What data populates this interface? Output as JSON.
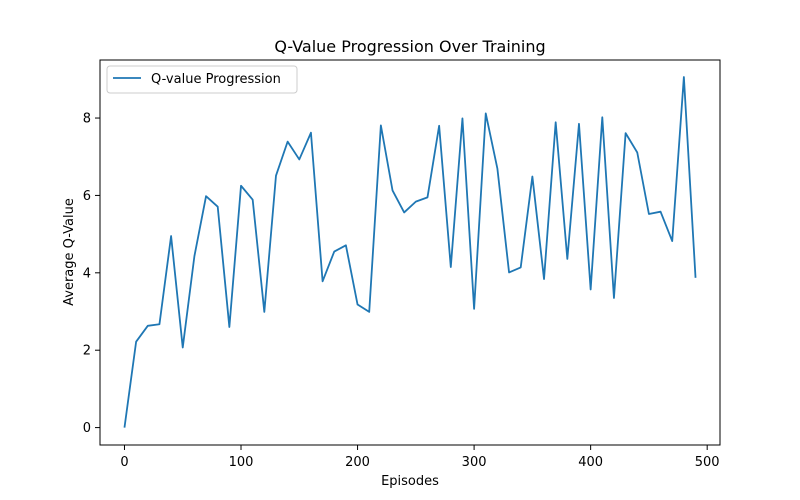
{
  "chart_data": {
    "type": "line",
    "title": "Q-Value Progression Over Training",
    "xlabel": "Episodes",
    "ylabel": "Average Q-Value",
    "xlim": [
      -21,
      511
    ],
    "ylim": [
      -0.45,
      9.5
    ],
    "x_ticks": [
      0,
      100,
      200,
      300,
      400,
      500
    ],
    "y_ticks": [
      0,
      2,
      4,
      6,
      8
    ],
    "x_tick_labels": [
      "0",
      "100",
      "200",
      "300",
      "400",
      "500"
    ],
    "y_tick_labels": [
      "0",
      "2",
      "4",
      "6",
      "8"
    ],
    "grid": false,
    "legend_position": "top-left",
    "series": [
      {
        "name": "Q-value Progression",
        "color": "#1f77b4",
        "x": [
          0,
          10,
          20,
          30,
          40,
          50,
          60,
          70,
          80,
          90,
          100,
          110,
          120,
          130,
          140,
          150,
          160,
          170,
          180,
          190,
          200,
          210,
          220,
          230,
          240,
          250,
          260,
          270,
          280,
          290,
          300,
          310,
          320,
          330,
          340,
          350,
          360,
          370,
          380,
          390,
          400,
          410,
          420,
          430,
          440,
          450,
          460,
          470,
          480,
          490
        ],
        "values": [
          0.0,
          2.22,
          2.63,
          2.67,
          4.95,
          2.07,
          4.43,
          5.98,
          5.71,
          2.6,
          6.25,
          5.89,
          2.99,
          6.51,
          7.39,
          6.93,
          7.62,
          3.78,
          4.55,
          4.71,
          3.18,
          2.99,
          7.81,
          6.13,
          5.56,
          5.84,
          5.95,
          7.8,
          4.15,
          7.99,
          3.07,
          8.12,
          6.69,
          4.01,
          4.14,
          6.49,
          3.84,
          7.89,
          4.36,
          7.85,
          3.57,
          8.02,
          3.35,
          7.61,
          7.11,
          5.52,
          5.58,
          4.82,
          9.06,
          3.87
        ]
      }
    ]
  }
}
